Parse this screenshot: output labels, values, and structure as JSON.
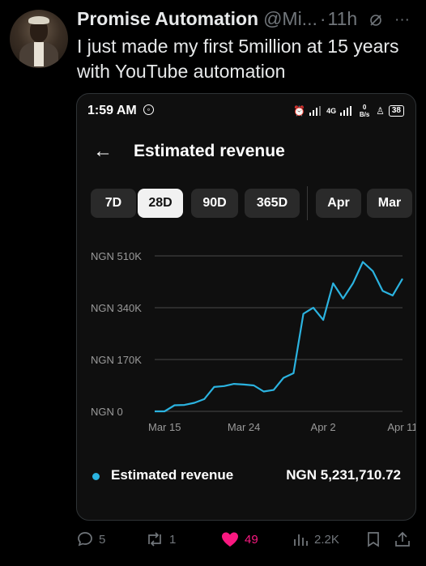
{
  "tweet": {
    "author_name": "Promise Automation",
    "handle": "@Mi...",
    "separator": "·",
    "time": "11h",
    "text": "I just made my first 5million at 15 years with YouTube automation"
  },
  "phone": {
    "status_time": "1:59 AM",
    "network_label": "4G",
    "speed_label": "0 B/s",
    "battery": "38",
    "page_title": "Estimated revenue",
    "filters": [
      "7D",
      "28D",
      "90D",
      "365D",
      "Apr",
      "Mar"
    ],
    "active_filter": "28D",
    "legend_label": "Estimated revenue",
    "legend_value": "NGN 5,231,710.72"
  },
  "chart_data": {
    "type": "line",
    "y_ticks": [
      "NGN 510K",
      "NGN 340K",
      "NGN 170K",
      "NGN 0"
    ],
    "y_tick_values": [
      510,
      340,
      170,
      0
    ],
    "x_ticks": [
      "Mar 15",
      "Mar 24",
      "Apr 2",
      "Apr 11"
    ],
    "ylim": [
      0,
      510
    ],
    "series": [
      {
        "color": "#2bb3e0",
        "values": [
          0,
          0,
          20,
          21,
          28,
          40,
          80,
          83,
          90,
          88,
          85,
          65,
          70,
          110,
          125,
          320,
          340,
          300,
          420,
          370,
          420,
          490,
          460,
          395,
          380,
          435
        ]
      }
    ],
    "grid": true,
    "legend": "bottom"
  },
  "actions": {
    "replies": "5",
    "reposts": "1",
    "likes": "49",
    "views": "2.2K"
  }
}
